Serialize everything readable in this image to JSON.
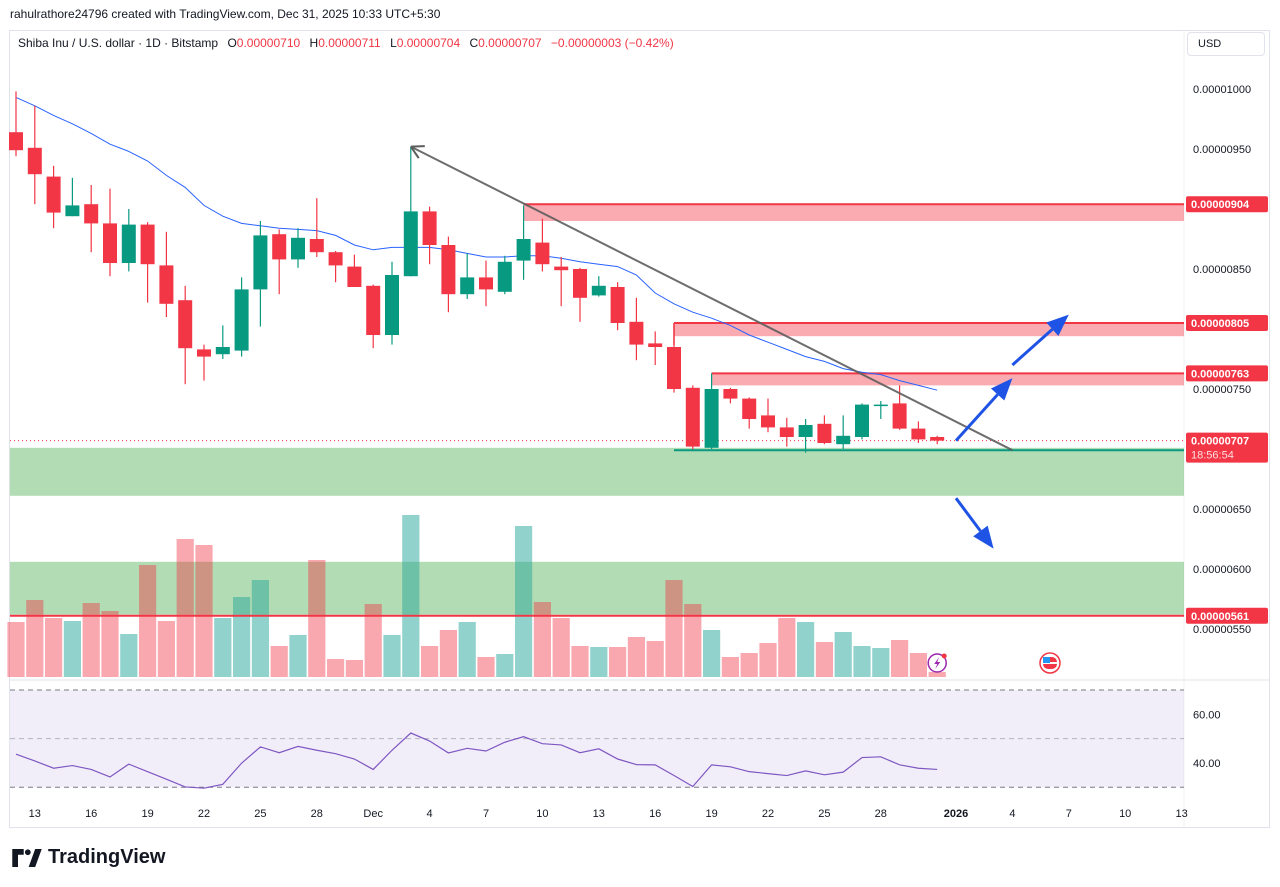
{
  "credit": "rahulrathore24796 created with TradingView.com, Dec 31, 2025 10:33 UTC+5:30",
  "legend": {
    "symbol": "Shiba Inu / U.S. dollar · 1D · Bitstamp",
    "o_label": "O",
    "o": "0.00000710",
    "h_label": "H",
    "h": "0.00000711",
    "l_label": "L",
    "l": "0.00000704",
    "c_label": "C",
    "c": "0.00000707",
    "change": "−0.00000003 (−0.42%)"
  },
  "currency_button": "USD",
  "brand": "TradingView",
  "colors": {
    "up": "#089981",
    "down": "#f23645",
    "ma": "#2962ff",
    "rsi": "#7e57c2",
    "zone_red": "#f23645",
    "zone_green": "#4caf50",
    "arrow": "#1e53e5",
    "trendline": "#5d5d5d"
  },
  "chart_data": {
    "type": "candlestick",
    "price_axis": {
      "ylim": [
        5.45e-06,
        1.035e-05
      ],
      "ticks": [
        "0.00001000",
        "0.00000950",
        "0.00000850",
        "0.00000750",
        "0.00000650",
        "0.00000600",
        "0.00000550"
      ]
    },
    "price_badges": [
      {
        "value": "0.00000904",
        "price": 9.04e-06
      },
      {
        "value": "0.00000805",
        "price": 8.05e-06
      },
      {
        "value": "0.00000763",
        "price": 7.63e-06
      },
      {
        "value": "0.00000707",
        "price": 7.07e-06,
        "countdown": "18:56:54"
      },
      {
        "value": "0.00000561",
        "price": 5.61e-06
      }
    ],
    "time_ticks": [
      {
        "label": "13",
        "date": "2025-11-13"
      },
      {
        "label": "16",
        "date": "2025-11-16"
      },
      {
        "label": "19",
        "date": "2025-11-19"
      },
      {
        "label": "22",
        "date": "2025-11-22"
      },
      {
        "label": "25",
        "date": "2025-11-25"
      },
      {
        "label": "28",
        "date": "2025-11-28"
      },
      {
        "label": "Dec",
        "date": "2025-12-01"
      },
      {
        "label": "4",
        "date": "2025-12-04"
      },
      {
        "label": "7",
        "date": "2025-12-07"
      },
      {
        "label": "10",
        "date": "2025-12-10"
      },
      {
        "label": "13",
        "date": "2025-12-13"
      },
      {
        "label": "16",
        "date": "2025-12-16"
      },
      {
        "label": "19",
        "date": "2025-12-19"
      },
      {
        "label": "22",
        "date": "2025-12-22"
      },
      {
        "label": "25",
        "date": "2025-12-25"
      },
      {
        "label": "28",
        "date": "2025-12-28"
      },
      {
        "label": "2026",
        "date": "2026-01-01"
      },
      {
        "label": "4",
        "date": "2026-01-04"
      },
      {
        "label": "7",
        "date": "2026-01-07"
      },
      {
        "label": "10",
        "date": "2026-01-10"
      },
      {
        "label": "13",
        "date": "2026-01-13"
      }
    ],
    "start": "2025-11-12",
    "candles": [
      [
        9.64e-06,
        9.98e-06,
        9.44e-06,
        9.49e-06
      ],
      [
        9.51e-06,
        9.86e-06,
        9.04e-06,
        9.29e-06
      ],
      [
        9.27e-06,
        9.36e-06,
        8.84e-06,
        8.97e-06
      ],
      [
        8.94e-06,
        9.26e-06,
        8.94e-06,
        9.03e-06
      ],
      [
        9.04e-06,
        9.2e-06,
        8.64e-06,
        8.88e-06
      ],
      [
        8.88e-06,
        9.17e-06,
        8.44e-06,
        8.55e-06
      ],
      [
        8.55e-06,
        9e-06,
        8.48e-06,
        8.87e-06
      ],
      [
        8.87e-06,
        8.89e-06,
        8.22e-06,
        8.54e-06
      ],
      [
        8.53e-06,
        8.81e-06,
        8.1e-06,
        8.21e-06
      ],
      [
        8.24e-06,
        8.36e-06,
        7.54e-06,
        7.84e-06
      ],
      [
        7.83e-06,
        7.87e-06,
        7.57e-06,
        7.77e-06
      ],
      [
        7.79e-06,
        8.03e-06,
        7.75e-06,
        7.85e-06
      ],
      [
        7.82e-06,
        8.43e-06,
        7.77e-06,
        8.33e-06
      ],
      [
        8.33e-06,
        8.9e-06,
        8.02e-06,
        8.78e-06
      ],
      [
        8.79e-06,
        8.83e-06,
        8.29e-06,
        8.58e-06
      ],
      [
        8.58e-06,
        8.84e-06,
        8.51e-06,
        8.76e-06
      ],
      [
        8.75e-06,
        9.09e-06,
        8.6e-06,
        8.64e-06
      ],
      [
        8.64e-06,
        8.65e-06,
        8.39e-06,
        8.53e-06
      ],
      [
        8.52e-06,
        8.62e-06,
        8.35e-06,
        8.35e-06
      ],
      [
        8.36e-06,
        8.37e-06,
        7.84e-06,
        7.95e-06
      ],
      [
        7.95e-06,
        8.56e-06,
        7.87e-06,
        8.45e-06
      ],
      [
        8.44e-06,
        9.52e-06,
        8.44e-06,
        8.98e-06
      ],
      [
        8.98e-06,
        9.02e-06,
        8.54e-06,
        8.7e-06
      ],
      [
        8.7e-06,
        8.77e-06,
        8.14e-06,
        8.29e-06
      ],
      [
        8.29e-06,
        8.63e-06,
        8.25e-06,
        8.43e-06
      ],
      [
        8.43e-06,
        8.57e-06,
        8.19e-06,
        8.33e-06
      ],
      [
        8.31e-06,
        8.61e-06,
        8.29e-06,
        8.56e-06
      ],
      [
        8.57e-06,
        9.03e-06,
        8.41e-06,
        8.75e-06
      ],
      [
        8.72e-06,
        8.92e-06,
        8.48e-06,
        8.54e-06
      ],
      [
        8.52e-06,
        8.6e-06,
        8.19e-06,
        8.49e-06
      ],
      [
        8.5e-06,
        8.51e-06,
        8.06e-06,
        8.26e-06
      ],
      [
        8.28e-06,
        8.44e-06,
        8.27e-06,
        8.36e-06
      ],
      [
        8.35e-06,
        8.39e-06,
        7.99e-06,
        8.05e-06
      ],
      [
        8.06e-06,
        8.26e-06,
        7.74e-06,
        7.87e-06
      ],
      [
        7.88e-06,
        7.98e-06,
        7.7e-06,
        7.85e-06
      ],
      [
        7.85e-06,
        8.05e-06,
        7.47e-06,
        7.5e-06
      ],
      [
        7.51e-06,
        7.53e-06,
        6.99e-06,
        7.02e-06
      ],
      [
        7.01e-06,
        7.63e-06,
        7e-06,
        7.5e-06
      ],
      [
        7.5e-06,
        7.51e-06,
        7.38e-06,
        7.42e-06
      ],
      [
        7.42e-06,
        7.43e-06,
        7.17e-06,
        7.25e-06
      ],
      [
        7.28e-06,
        7.42e-06,
        7.14e-06,
        7.18e-06
      ],
      [
        7.18e-06,
        7.26e-06,
        7.02e-06,
        7.1e-06
      ],
      [
        7.1e-06,
        7.25e-06,
        6.97e-06,
        7.2e-06
      ],
      [
        7.21e-06,
        7.28e-06,
        7.04e-06,
        7.05e-06
      ],
      [
        7.04e-06,
        7.28e-06,
        7e-06,
        7.11e-06
      ],
      [
        7.1e-06,
        7.38e-06,
        7.08e-06,
        7.37e-06
      ],
      [
        7.36e-06,
        7.4e-06,
        7.25e-06,
        7.37e-06
      ],
      [
        7.38e-06,
        7.53e-06,
        7.16e-06,
        7.17e-06
      ],
      [
        7.17e-06,
        7.23e-06,
        7.05e-06,
        7.08e-06
      ],
      [
        7.1e-06,
        7.11e-06,
        7.04e-06,
        7.07e-06
      ]
    ],
    "moving_average": [
      9.93e-06,
      9.86e-06,
      9.78e-06,
      9.71e-06,
      9.63e-06,
      9.54e-06,
      9.48e-06,
      9.4e-06,
      9.28e-06,
      9.18e-06,
      9.03e-06,
      8.94e-06,
      8.88e-06,
      8.86e-06,
      8.84e-06,
      8.83e-06,
      8.82e-06,
      8.78e-06,
      8.7e-06,
      8.66e-06,
      8.68e-06,
      8.68e-06,
      8.68e-06,
      8.66e-06,
      8.63e-06,
      8.6e-06,
      8.6e-06,
      8.61e-06,
      8.61e-06,
      8.59e-06,
      8.56e-06,
      8.54e-06,
      8.52e-06,
      8.45e-06,
      8.3e-06,
      8.21e-06,
      8.14e-06,
      8.09e-06,
      8.03e-06,
      7.95e-06,
      7.89e-06,
      7.83e-06,
      7.77e-06,
      7.73e-06,
      7.67e-06,
      7.64e-06,
      7.62e-06,
      7.57e-06,
      7.53e-06,
      7.49e-06
    ],
    "volume_relative": [
      55,
      77,
      59,
      56,
      74,
      66,
      43,
      112,
      56,
      138,
      132,
      59,
      80,
      97,
      31,
      42,
      117,
      18,
      17,
      73,
      42,
      162,
      31,
      47,
      55,
      20,
      23,
      151,
      75,
      59,
      31,
      30,
      30,
      40,
      36,
      97,
      73,
      47,
      20,
      24,
      34,
      59,
      55,
      35,
      45,
      31,
      29,
      37,
      24,
      5
    ],
    "rsi": {
      "ticks": [
        "60.00",
        "40.00"
      ],
      "bands": [
        70,
        50,
        30
      ],
      "values": [
        43.6,
        40.8,
        37.8,
        38.9,
        37.3,
        34.2,
        39.5,
        36.4,
        33.3,
        30.1,
        29.6,
        31.2,
        39.9,
        46.6,
        44.2,
        46.8,
        45.2,
        43.8,
        41.6,
        37.3,
        45.2,
        52.3,
        49.0,
        44.1,
        46.0,
        44.9,
        48.5,
        50.8,
        47.9,
        47.4,
        44.2,
        45.8,
        41.6,
        39.3,
        39.2,
        34.8,
        30.3,
        39.2,
        38.4,
        36.4,
        35.6,
        34.8,
        36.7,
        35.1,
        36.2,
        42.2,
        42.5,
        39.2,
        37.8,
        37.3
      ]
    },
    "drawings": {
      "resistance_zones": [
        {
          "from": "2025-12-09",
          "top": 9.04e-06,
          "bottom": 8.9e-06
        },
        {
          "from": "2025-12-17",
          "top": 8.05e-06,
          "bottom": 7.94e-06
        },
        {
          "from": "2025-12-19",
          "top": 7.63e-06,
          "bottom": 7.53e-06
        }
      ],
      "support_zones": [
        {
          "top": 7.01e-06,
          "bottom": 6.61e-06
        },
        {
          "top": 6.06e-06,
          "bottom": 5.62e-06
        }
      ],
      "support_line": {
        "from": "2025-12-17",
        "price": 6.99e-06
      },
      "red_line": {
        "price": 5.61e-06
      },
      "trendline": {
        "from": [
          "2025-12-03",
          9.52e-06
        ],
        "to": [
          "2026-01-04",
          6.99e-06
        ]
      },
      "arrows": [
        {
          "from": [
            "2026-01-01",
            7.07e-06
          ],
          "to": [
            "2026-01-04",
            7.59e-06
          ]
        },
        {
          "from": [
            "2026-01-04",
            7.7e-06
          ],
          "to": [
            "2026-01-07",
            8.12e-06
          ]
        },
        {
          "from": [
            "2026-01-01",
            6.59e-06
          ],
          "to": [
            "2026-01-03",
            6.17e-06
          ]
        }
      ],
      "events": [
        {
          "date": "2025-12-31",
          "icon": "lightning-event-icon"
        },
        {
          "date": "2026-01-06",
          "icon": "us-flag-event-icon"
        }
      ]
    }
  }
}
